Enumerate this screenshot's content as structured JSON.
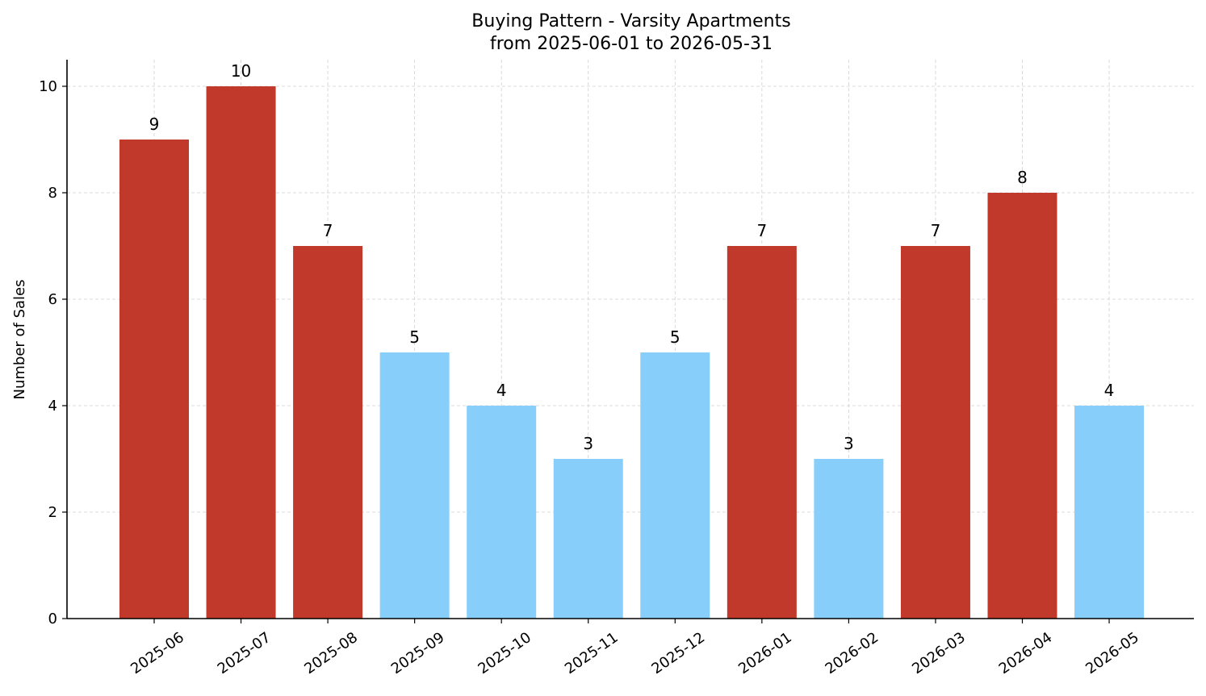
{
  "chart_data": {
    "type": "bar",
    "title": "Buying Pattern - Varsity Apartments",
    "subtitle": "from 2025-06-01 to 2026-05-31",
    "xlabel": "",
    "ylabel": "Number of Sales",
    "categories": [
      "2025-06",
      "2025-07",
      "2025-08",
      "2025-09",
      "2025-10",
      "2025-11",
      "2025-12",
      "2026-01",
      "2026-02",
      "2026-03",
      "2026-04",
      "2026-05"
    ],
    "values": [
      9,
      10,
      7,
      5,
      4,
      3,
      5,
      7,
      3,
      7,
      8,
      4
    ],
    "bar_colors": [
      "#c0392b",
      "#c0392b",
      "#c0392b",
      "#87cefa",
      "#87cefa",
      "#87cefa",
      "#87cefa",
      "#c0392b",
      "#87cefa",
      "#c0392b",
      "#c0392b",
      "#87cefa"
    ],
    "ylim": [
      0,
      10.5
    ],
    "yticks": [
      0,
      2,
      4,
      6,
      8,
      10
    ],
    "grid": true,
    "data_labels": true
  }
}
